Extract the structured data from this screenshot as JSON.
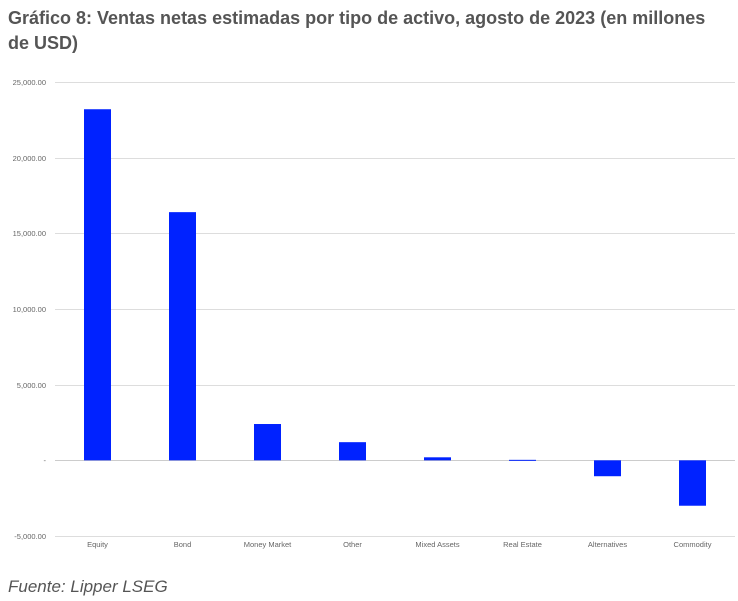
{
  "page": {
    "title": "Gráfico 8: Ventas netas estimadas por tipo de activo, agosto de 2023 (en millones de USD)",
    "source": "Fuente: Lipper LSEG"
  },
  "chart_data": {
    "type": "bar",
    "title": "Gráfico 8: Ventas netas estimadas por tipo de activo, agosto de 2023 (en millones de USD)",
    "xlabel": "",
    "ylabel": "",
    "categories": [
      "Equity",
      "Bond",
      "Money Market",
      "Other",
      "Mixed Assets",
      "Real Estate",
      "Alternatives",
      "Commodity"
    ],
    "values": [
      23200,
      16400,
      2400,
      1200,
      200,
      -50,
      -1050,
      -3000
    ],
    "ylim": [
      -5000,
      25000
    ],
    "yticks": [
      25000,
      20000,
      15000,
      10000,
      5000,
      0,
      -5000
    ],
    "ytick_labels": [
      "25,000.00",
      "20,000.00",
      "15,000.00",
      "10,000.00",
      "5,000.00",
      "-",
      "-5,000.00"
    ],
    "grid": true,
    "legend": "none",
    "bar_color": "#0022ff",
    "grid_color": "#dddddd"
  }
}
